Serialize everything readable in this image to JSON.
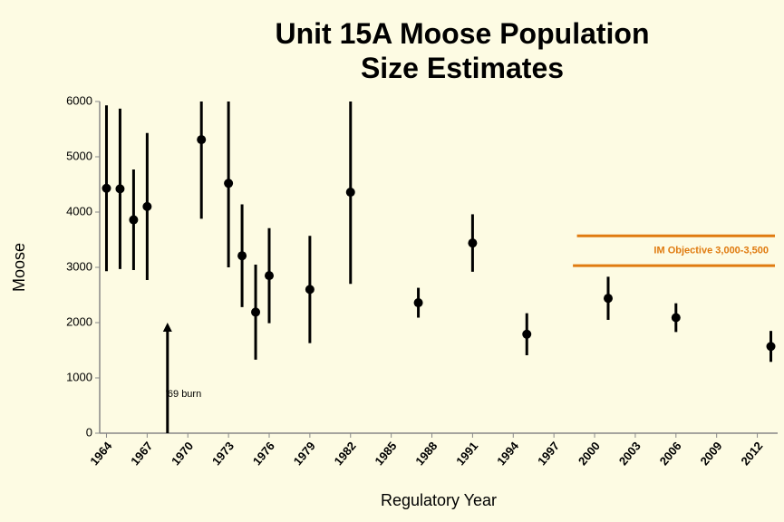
{
  "chart_data": {
    "type": "errorbar_scatter",
    "title": "Unit 15A Moose Population Size Estimates",
    "xlabel": "Regulatory Year",
    "ylabel": "Moose",
    "x": [
      1964,
      1965,
      1966,
      1967,
      1971,
      1973,
      1974,
      1975,
      1976,
      1979,
      1982,
      1987,
      1991,
      1995,
      2001,
      2006,
      2013
    ],
    "values": [
      4430,
      4420,
      3860,
      4100,
      5310,
      4520,
      3210,
      2190,
      2850,
      2600,
      4360,
      2360,
      3440,
      1790,
      2440,
      2090,
      1570
    ],
    "errors": [
      1500,
      1450,
      910,
      1330,
      1430,
      1520,
      930,
      860,
      860,
      970,
      1660,
      270,
      520,
      380,
      390,
      260,
      280
    ],
    "color": "#000000",
    "xlim": [
      1963.5,
      2013.5
    ],
    "xticks": [
      1964,
      1967,
      1970,
      1973,
      1976,
      1979,
      1982,
      1985,
      1988,
      1991,
      1994,
      1997,
      2000,
      2003,
      2006,
      2009,
      2012
    ],
    "ylim": [
      0,
      6000
    ],
    "yticks": [
      0,
      1000,
      2000,
      3000,
      4000,
      5000,
      6000
    ],
    "annotations": [
      {
        "text": "'69 burn",
        "x": 1968.5,
        "y_from": 0,
        "y_to": 2000,
        "color": "#000000"
      },
      {
        "text": "IM Objective 3,000-3,500",
        "color": "#e07b10",
        "lines": [
          {
            "y": 3570,
            "x_from": 1998.7,
            "x_to": 2013.3
          },
          {
            "y": 3030,
            "x_from": 1998.4,
            "x_to": 2013.3
          }
        ]
      }
    ]
  }
}
